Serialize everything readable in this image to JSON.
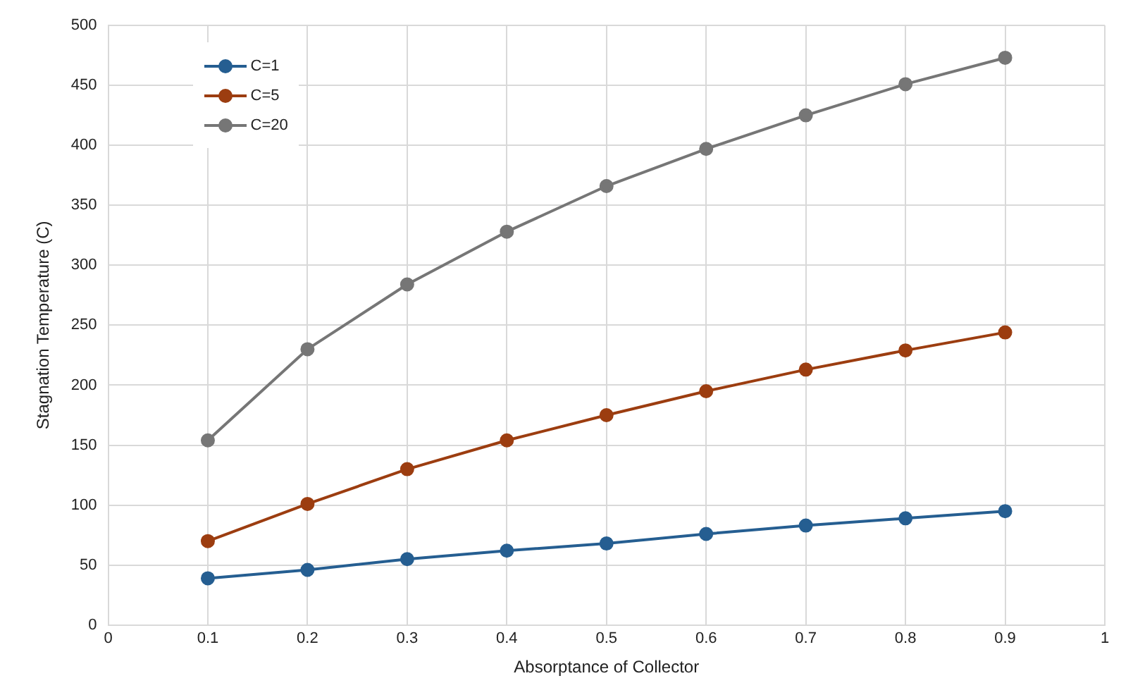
{
  "chart_data": {
    "type": "line",
    "xlabel": "Absorptance of Collector",
    "ylabel": "Stagnation Temperature (C)",
    "x": [
      0.1,
      0.2,
      0.3,
      0.4,
      0.5,
      0.6,
      0.7,
      0.8,
      0.9
    ],
    "series": [
      {
        "name": "C=1",
        "color": "#255e91",
        "values": [
          39,
          46,
          55,
          62,
          68,
          76,
          83,
          89,
          95
        ]
      },
      {
        "name": "C=5",
        "color": "#9c3d10",
        "values": [
          70,
          101,
          130,
          154,
          175,
          195,
          213,
          229,
          244
        ]
      },
      {
        "name": "C=20",
        "color": "#767676",
        "values": [
          154,
          230,
          284,
          328,
          366,
          397,
          425,
          451,
          473
        ]
      }
    ],
    "xlim": [
      0,
      1
    ],
    "xticks": [
      0,
      0.1,
      0.2,
      0.3,
      0.4,
      0.5,
      0.6,
      0.7,
      0.8,
      0.9,
      1
    ],
    "ylim": [
      0,
      500
    ],
    "yticks": [
      0,
      50,
      100,
      150,
      200,
      250,
      300,
      350,
      400,
      450,
      500
    ],
    "grid": true,
    "legend": "top left",
    "marker": "circle",
    "line_style": "solid"
  }
}
